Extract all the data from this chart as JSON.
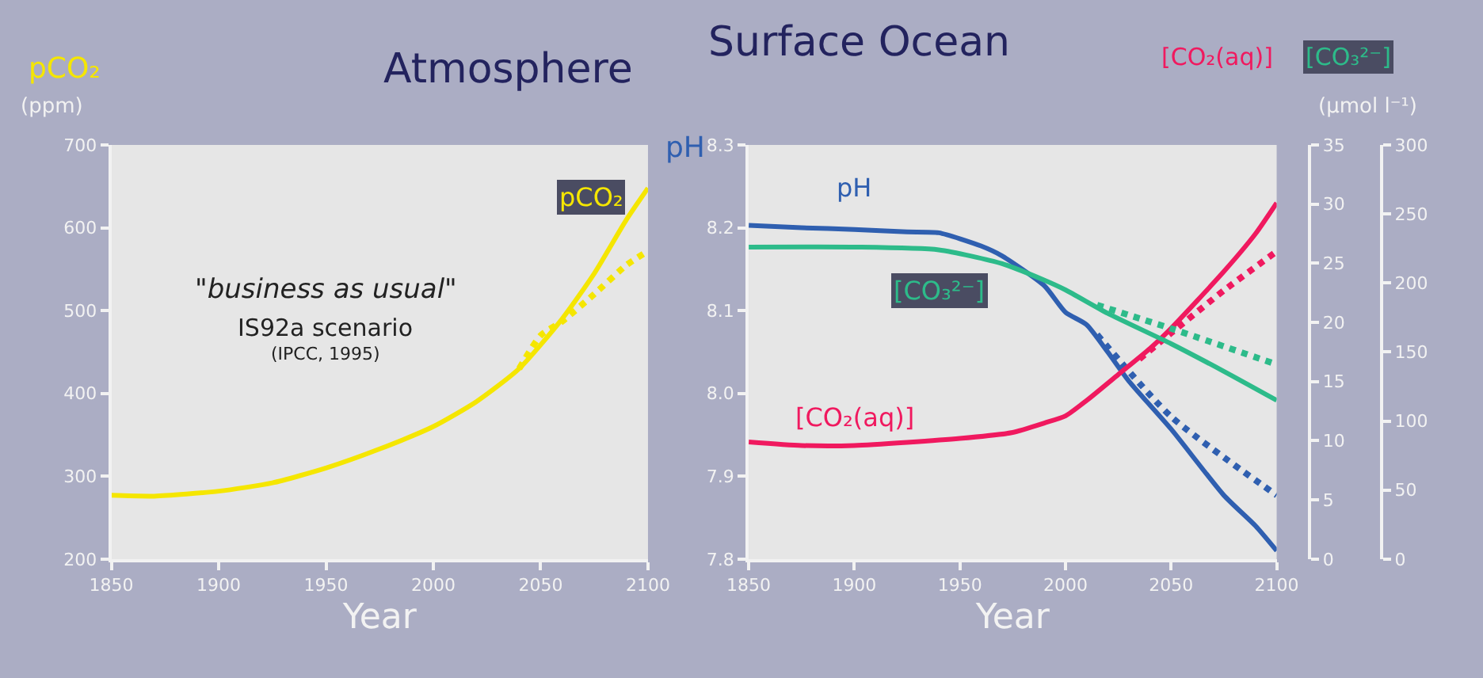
{
  "chart_data": [
    {
      "type": "line",
      "title": "Atmosphere",
      "xlabel": "Year",
      "ylabel": "pCO₂",
      "annotations": [
        "\"business as usual\"",
        "IS92a scenario",
        "(IPCC, 1995)",
        "(ppm)"
      ],
      "xlim": [
        1850,
        2100
      ],
      "xticks": [
        1850,
        1900,
        1950,
        2000,
        2050,
        2100
      ],
      "ylim": [
        200,
        700
      ],
      "yticks": [
        200,
        300,
        400,
        500,
        600,
        700
      ],
      "grid": false,
      "series": [
        {
          "name": "pCO₂",
          "color": "#f5e600",
          "line_style": "solid",
          "x": [
            1850,
            1870,
            1900,
            1925,
            1950,
            1975,
            2000,
            2020,
            2040,
            2060,
            2075,
            2090,
            2100
          ],
          "values": [
            277,
            276,
            282,
            292,
            310,
            333,
            360,
            390,
            430,
            490,
            545,
            610,
            648
          ]
        },
        {
          "color": "#f5e600",
          "line_style": "dotted",
          "x": [
            2040,
            2050,
            2060,
            2075,
            2090,
            2100
          ],
          "values": [
            430,
            470,
            487,
            520,
            555,
            572
          ]
        }
      ]
    },
    {
      "type": "line",
      "title": "Surface Ocean",
      "xlabel": "Year",
      "ylabel": "pH",
      "y2label": "[CO₂(aq)]",
      "y3label": "[CO₃²⁻]",
      "annotations": [
        "(μmol l⁻¹)"
      ],
      "xlim": [
        1850,
        2100
      ],
      "xticks": [
        1850,
        1900,
        1950,
        2000,
        2050,
        2100
      ],
      "ylim": [
        7.8,
        8.3
      ],
      "yticks": [
        7.8,
        7.9,
        {
          "value": 8.0,
          "label": "8.0"
        },
        8.1,
        8.2,
        8.3
      ],
      "y2lim": [
        0,
        35
      ],
      "y2ticks": [
        0,
        5,
        10,
        15,
        20,
        25,
        30,
        35
      ],
      "y3lim": [
        0,
        300
      ],
      "y3ticks": [
        0,
        50,
        100,
        150,
        200,
        250,
        300
      ],
      "grid": false,
      "series": [
        {
          "name": "pH",
          "color": "#2f5fb0",
          "line_style": "solid",
          "x": [
            1850,
            1875,
            1900,
            1925,
            1940,
            1960,
            1970,
            1990,
            2000,
            2010,
            2020,
            2030,
            2050,
            2075,
            2090,
            2100
          ],
          "values": [
            8.203,
            8.2,
            8.198,
            8.195,
            8.194,
            8.178,
            8.166,
            8.13,
            8.098,
            8.083,
            8.05,
            8.015,
            7.957,
            7.877,
            7.84,
            7.81
          ]
        },
        {
          "color": "#2f5fb0",
          "line_style": "dotted",
          "x": [
            2015,
            2050,
            2100
          ],
          "values": [
            8.071,
            7.972,
            7.877
          ]
        },
        {
          "name": "[CO₃²⁻]",
          "color": "#2dbb8a",
          "line_style": "solid",
          "axis": "y3",
          "x": [
            1850,
            1900,
            1940,
            1970,
            1990,
            2000,
            2020,
            2050,
            2075,
            2100
          ],
          "values": [
            226,
            226,
            224,
            214,
            202,
            195,
            178,
            156,
            136,
            115
          ]
        },
        {
          "color": "#2dbb8a",
          "line_style": "dotted",
          "axis": "y3",
          "x": [
            2015,
            2050,
            2100
          ],
          "values": [
            184,
            167,
            141
          ]
        },
        {
          "name": "[CO₂(aq)]",
          "color": "#f0195f",
          "line_style": "solid",
          "axis": "y2",
          "x": [
            1850,
            1875,
            1900,
            1950,
            1975,
            1990,
            2000,
            2010,
            2025,
            2040,
            2050,
            2075,
            2090,
            2100
          ],
          "values": [
            9.9,
            9.6,
            9.6,
            10.2,
            10.7,
            11.5,
            12.1,
            13.4,
            15.6,
            17.8,
            19.5,
            24.3,
            27.5,
            30.1
          ]
        },
        {
          "color": "#f0195f",
          "line_style": "dotted",
          "axis": "y2",
          "x": [
            2035,
            2050,
            2075,
            2100
          ],
          "values": [
            16.9,
            19.1,
            22.7,
            26
          ]
        }
      ]
    }
  ]
}
